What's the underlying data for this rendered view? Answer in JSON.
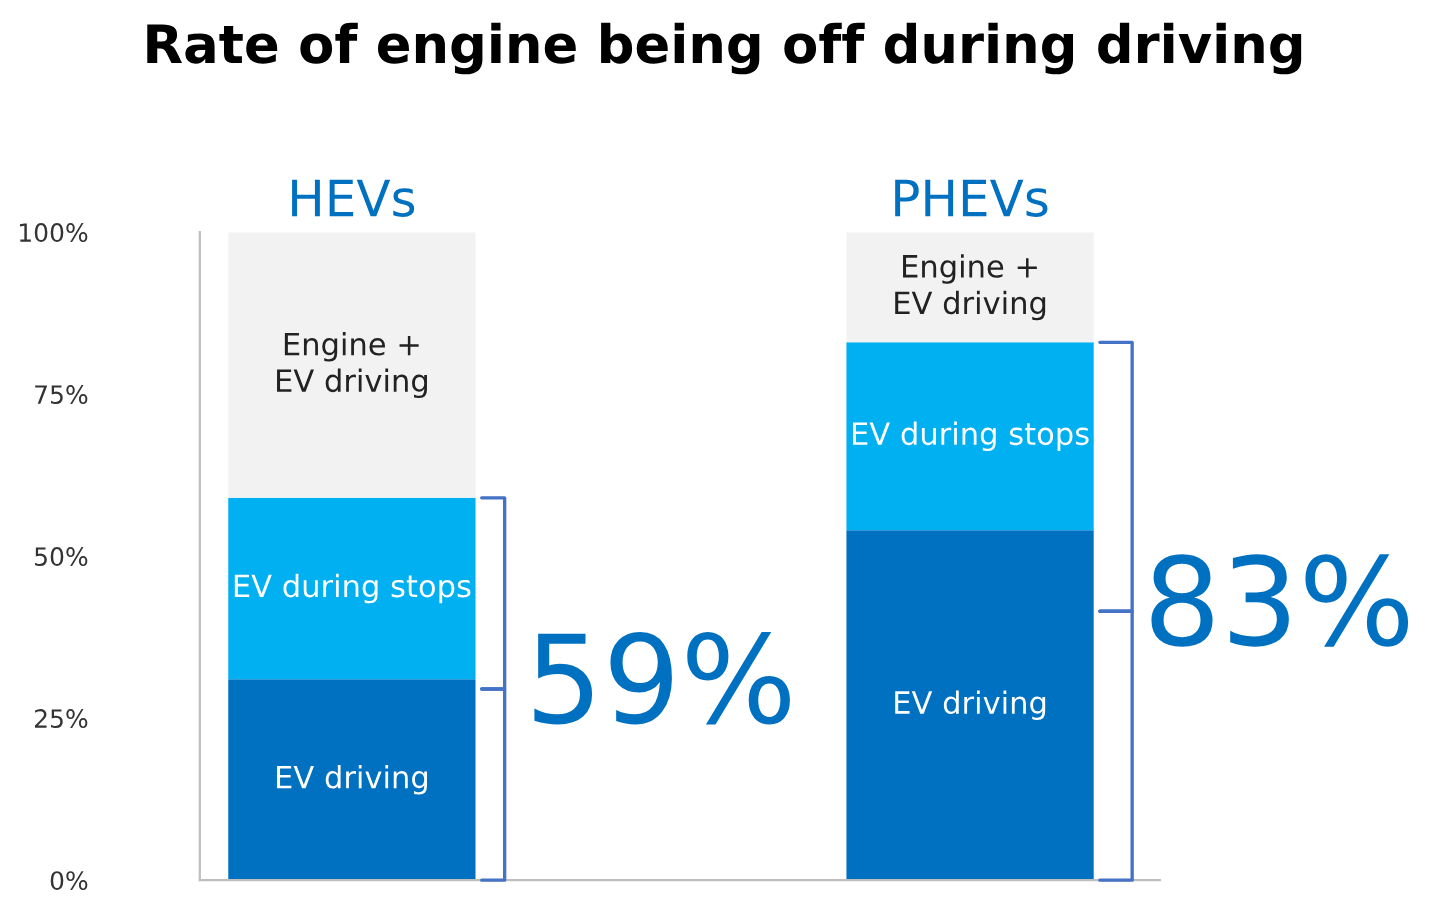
{
  "chart_data": {
    "type": "bar",
    "stacked": true,
    "title": "Rate of engine being off during driving",
    "categories": [
      "HEVs",
      "PHEVs"
    ],
    "series": [
      {
        "name": "EV driving",
        "color": "#0070c0",
        "values": [
          31,
          54
        ]
      },
      {
        "name": "EV during stops",
        "color": "#00b0f0",
        "values": [
          28,
          29
        ]
      },
      {
        "name": "Engine +\nEV driving",
        "color": "#f2f2f2",
        "values": [
          41,
          17
        ]
      }
    ],
    "ylim": [
      0,
      100
    ],
    "yticks": [
      {
        "value": 0,
        "label": "0%"
      },
      {
        "value": 25,
        "label": "25%"
      },
      {
        "value": 50,
        "label": "50%"
      },
      {
        "value": 75,
        "label": "75%"
      },
      {
        "value": 100,
        "label": "100%"
      }
    ],
    "annotations": [
      {
        "text": "59%",
        "x": "HEVs",
        "y": 59
      },
      {
        "text": "83%",
        "x": "PHEVs",
        "y": 83
      }
    ],
    "grid": false,
    "legend": false
  }
}
